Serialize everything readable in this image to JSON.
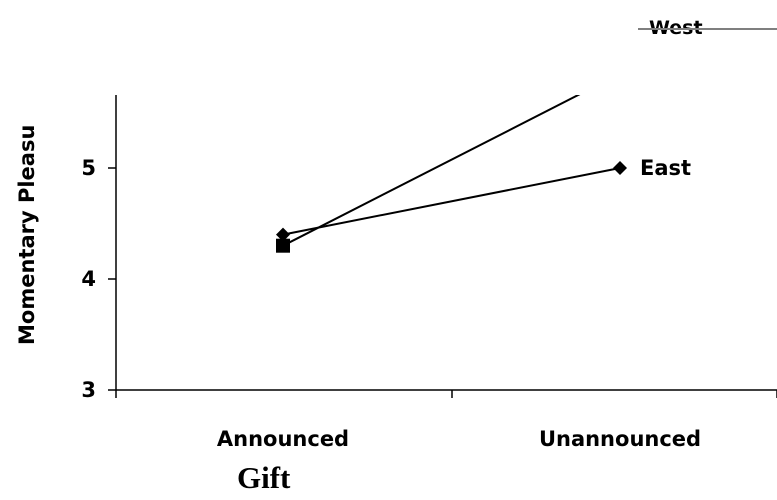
{
  "chart_data": {
    "type": "line",
    "title": "",
    "xlabel": "Gift",
    "ylabel": "Momentary Pleasu",
    "categories": [
      "Announced",
      "Unannounced"
    ],
    "yticks": [
      3,
      4,
      5
    ],
    "ylim": [
      3,
      5.7
    ],
    "series": [
      {
        "name": "West",
        "values": [
          4.3,
          5.85
        ],
        "marker": "square",
        "color": "#000000"
      },
      {
        "name": "East",
        "values": [
          4.4,
          5.0
        ],
        "marker": "diamond",
        "color": "#000000"
      }
    ],
    "legend": {
      "label": "West",
      "placement": "top-right",
      "line_color": "#7f7f7f"
    },
    "grid": false
  }
}
